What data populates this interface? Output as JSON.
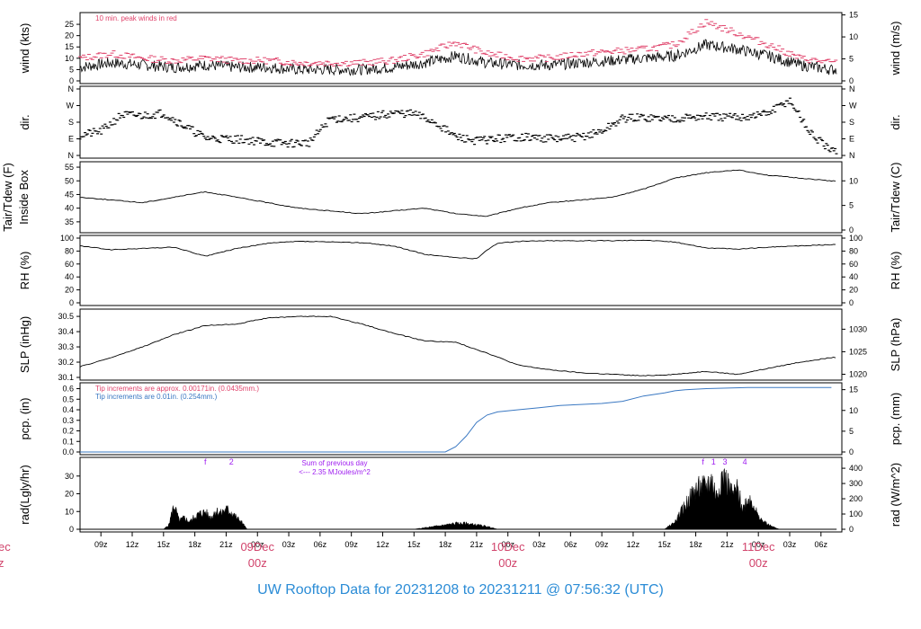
{
  "footer_title": "UW Rooftop Data for 20231208  to  20231211 @ 07:56:32  (UTC)",
  "colors": {
    "ink": "#000000",
    "peak": "#e0436b",
    "precip_line": "#3a78c2",
    "precip_note2": "#3a78c2",
    "solar_note": "#a020f0",
    "date_label": "#d1436b",
    "footer": "#2b8cd6"
  },
  "time_axis": {
    "start": "2023-12-08 07:00Z",
    "end": "2023-12-11 07:56Z",
    "hour_ticks": [
      "09z",
      "12z",
      "15z",
      "18z",
      "21z",
      "00z",
      "03z",
      "06z",
      "09z",
      "12z",
      "15z",
      "18z",
      "21z",
      "00z",
      "03z",
      "06z",
      "09z",
      "12z",
      "15z",
      "18z",
      "21z",
      "00z",
      "03z",
      "06z"
    ],
    "date_labels": [
      {
        "date": "09Dec",
        "hour": "00z"
      },
      {
        "date": "10Dec",
        "hour": "00z"
      },
      {
        "date": "11Dec",
        "hour": "00z"
      }
    ],
    "left_edge_fragments": [
      "ec",
      "z"
    ]
  },
  "chart_data": [
    {
      "type": "line",
      "panel": "wind",
      "ylabel_left": "wind (kts)",
      "ylabel_right": "wind (m/s)",
      "yticks_left": [
        0,
        5,
        10,
        15,
        20,
        25
      ],
      "yticks_right": [
        0,
        5,
        10,
        15
      ],
      "ylim": [
        0,
        29
      ],
      "annotation": "10 min. peak winds in red",
      "x_hours": [
        0,
        3,
        6,
        9,
        12,
        15,
        18,
        21,
        24,
        27,
        30,
        33,
        36,
        39,
        42,
        45,
        48,
        51,
        54,
        57,
        60,
        63,
        66,
        69,
        72
      ],
      "series": [
        {
          "role": "mean",
          "values": [
            6,
            8,
            7,
            6,
            7,
            6,
            6,
            5,
            5,
            5,
            6,
            8,
            11,
            8,
            7,
            7,
            8,
            9,
            10,
            11,
            16,
            14,
            11,
            7,
            5
          ]
        },
        {
          "role": "peak",
          "values": [
            10,
            12,
            10,
            9,
            10,
            9,
            9,
            8,
            8,
            8,
            9,
            12,
            17,
            12,
            10,
            10,
            12,
            13,
            14,
            16,
            26,
            21,
            16,
            10,
            8
          ]
        }
      ]
    },
    {
      "type": "scatter",
      "panel": "direction",
      "ylabel_left": "dir.",
      "ylabel_right": "dir.",
      "yticks_left": [
        "N",
        "E",
        "S",
        "W",
        "N"
      ],
      "yticks_right": [
        "N",
        "E",
        "S",
        "W",
        "N"
      ],
      "ylim": [
        0,
        360
      ],
      "x_hours": [
        0,
        2,
        4,
        6,
        8,
        10,
        12,
        14,
        16,
        18,
        20,
        22,
        24,
        26,
        28,
        30,
        32,
        34,
        36,
        38,
        40,
        42,
        44,
        46,
        48,
        50,
        52,
        54,
        56,
        58,
        60,
        62,
        64,
        66,
        68,
        70,
        72
      ],
      "values": [
        110,
        130,
        220,
        215,
        230,
        160,
        95,
        90,
        85,
        70,
        65,
        70,
        200,
        200,
        210,
        230,
        225,
        180,
        100,
        80,
        90,
        100,
        95,
        90,
        100,
        130,
        200,
        205,
        200,
        205,
        210,
        205,
        210,
        230,
        300,
        120,
        20
      ]
    },
    {
      "type": "line",
      "panel": "temperature",
      "ylabel_left": [
        "Tair/Tdew (F)",
        "Inside Box"
      ],
      "ylabel_right": "Tair/Tdew (C)",
      "yticks_left": [
        35,
        40,
        45,
        50,
        55
      ],
      "yticks_right": [
        0,
        5,
        10
      ],
      "ylim": [
        32,
        56
      ],
      "x_hours": [
        0,
        3,
        6,
        9,
        12,
        15,
        18,
        21,
        24,
        27,
        30,
        33,
        36,
        39,
        42,
        45,
        48,
        51,
        54,
        57,
        60,
        63,
        66,
        69,
        72
      ],
      "values": [
        44,
        43,
        42,
        44,
        46,
        44,
        42,
        40,
        39,
        38,
        39,
        40,
        38,
        37,
        40,
        42,
        43,
        44,
        47,
        51,
        53,
        54,
        52,
        51,
        50
      ]
    },
    {
      "type": "line",
      "panel": "humidity",
      "ylabel_left": "RH (%)",
      "ylabel_right": "RH (%)",
      "yticks_left": [
        0,
        20,
        40,
        60,
        80,
        100
      ],
      "yticks_right": [
        0,
        20,
        40,
        60,
        80,
        100
      ],
      "ylim": [
        0,
        100
      ],
      "x_hours": [
        0,
        3,
        6,
        9,
        12,
        15,
        18,
        21,
        24,
        27,
        30,
        33,
        36,
        38,
        39,
        40,
        42,
        45,
        48,
        51,
        54,
        57,
        60,
        63,
        66,
        69,
        72
      ],
      "values": [
        88,
        82,
        84,
        86,
        72,
        84,
        92,
        95,
        94,
        93,
        88,
        75,
        70,
        68,
        82,
        92,
        95,
        96,
        96,
        96,
        97,
        94,
        85,
        83,
        86,
        88,
        90
      ]
    },
    {
      "type": "line",
      "panel": "pressure",
      "ylabel_left": "SLP (inHg)",
      "ylabel_right": "SLP (hPa)",
      "yticks_left": [
        30.1,
        30.2,
        30.3,
        30.4,
        30.5
      ],
      "yticks_right": [
        1020,
        1025,
        1030
      ],
      "ylim": [
        30.1,
        30.53
      ],
      "x_hours": [
        0,
        3,
        6,
        9,
        12,
        15,
        18,
        21,
        24,
        27,
        30,
        33,
        36,
        39,
        42,
        45,
        48,
        51,
        54,
        57,
        60,
        63,
        66,
        69,
        72
      ],
      "values": [
        30.17,
        30.23,
        30.3,
        30.38,
        30.44,
        30.45,
        30.49,
        30.5,
        30.5,
        30.45,
        30.39,
        30.34,
        30.33,
        30.26,
        30.18,
        30.15,
        30.13,
        30.12,
        30.11,
        30.12,
        30.14,
        30.12,
        30.16,
        30.2,
        30.23
      ]
    },
    {
      "type": "line",
      "panel": "precipitation",
      "ylabel_left": "pcp. (in)",
      "ylabel_right": "pcp. (mm)",
      "yticks_left": [
        0.0,
        0.1,
        0.2,
        0.3,
        0.4,
        0.5,
        0.6
      ],
      "yticks_left_labels": [
        "0.0",
        "0.1",
        "0.2",
        "0.3",
        "0.4",
        "0.5",
        "0.6"
      ],
      "yticks_right": [
        0,
        5,
        10,
        15
      ],
      "ylim": [
        0,
        0.63
      ],
      "annotations": [
        "Tip increments are approx. 0.00171in. (0.0435mm.)",
        "Tip increments are 0.01in. (0.254mm.)"
      ],
      "x_hours": [
        0,
        35,
        36,
        37,
        38,
        39,
        40,
        42,
        44,
        46,
        48,
        50,
        52,
        54,
        56,
        57,
        58,
        60,
        64,
        68,
        72
      ],
      "values": [
        0,
        0,
        0.05,
        0.15,
        0.28,
        0.35,
        0.38,
        0.4,
        0.42,
        0.44,
        0.45,
        0.46,
        0.48,
        0.53,
        0.56,
        0.58,
        0.59,
        0.6,
        0.61,
        0.61,
        0.61
      ]
    },
    {
      "type": "area",
      "panel": "solar",
      "ylabel_left": "rad(Lgly/hr)",
      "ylabel_right": "rad (W/m^2)",
      "yticks_left": [
        0,
        10,
        20,
        30
      ],
      "yticks_right": [
        0,
        100,
        200,
        300,
        400
      ],
      "ylim": [
        0,
        39
      ],
      "annotation_lines": [
        "Sum of previous day",
        "<--- 2.35 MJoules/m^2"
      ],
      "markers": [
        {
          "label": "f",
          "hour": 12
        },
        {
          "label": "2",
          "hour": 14.5
        },
        {
          "label": "f",
          "hour": 59.7
        },
        {
          "label": "1",
          "hour": 60.7
        },
        {
          "label": "3",
          "hour": 61.8
        },
        {
          "label": "4",
          "hour": 63.7
        }
      ],
      "x_hours": [
        8,
        8.5,
        9,
        9.5,
        10,
        10.5,
        11,
        11.5,
        12,
        12.5,
        13,
        13.5,
        14,
        14.5,
        15,
        15.5,
        16,
        32,
        33,
        34,
        35,
        36,
        37,
        38,
        39,
        40,
        56,
        57,
        58,
        59,
        60,
        60.5,
        61,
        61.5,
        62,
        62.5,
        63,
        63.5,
        64,
        64.5,
        65,
        66,
        67
      ],
      "values": [
        0,
        3,
        17,
        6,
        8,
        5,
        9,
        11,
        12,
        8,
        13,
        11,
        14,
        12,
        8,
        5,
        0,
        0,
        1,
        2,
        3,
        4,
        4,
        3,
        2,
        0,
        0,
        5,
        17,
        28,
        30,
        35,
        23,
        38,
        33,
        24,
        28,
        14,
        22,
        19,
        8,
        3,
        0
      ]
    }
  ]
}
